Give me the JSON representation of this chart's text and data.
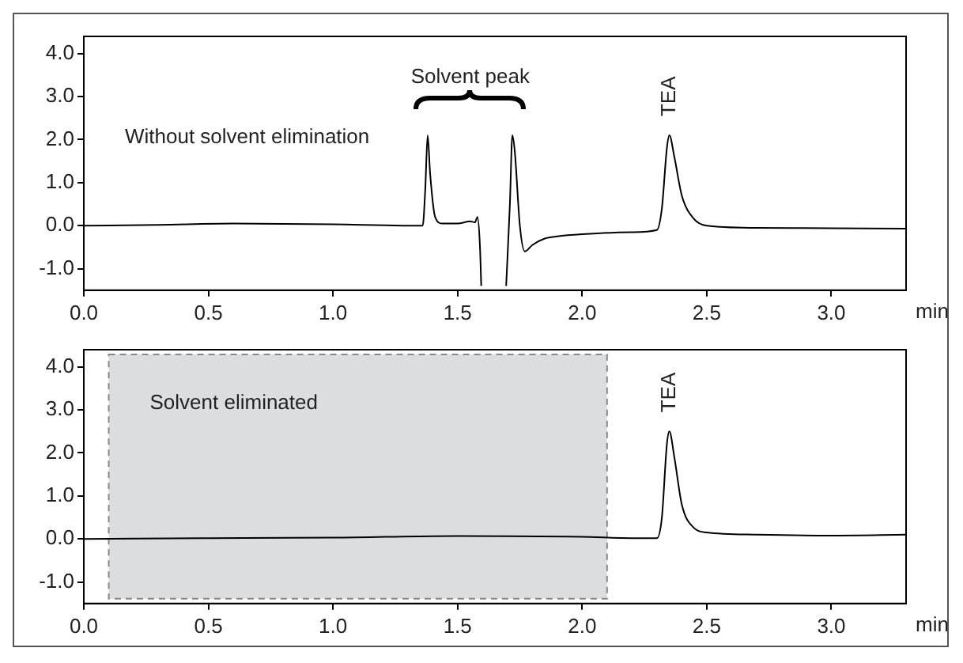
{
  "chart_data": [
    {
      "type": "line",
      "xlabel": "min",
      "xlim": [
        0,
        3.3
      ],
      "ylim": [
        -1.5,
        4.4
      ],
      "grid": false,
      "legend": false,
      "marker": "none",
      "line_style": "solid",
      "xticks": [
        {
          "value": 0,
          "label": "0.0"
        },
        {
          "value": 0.5,
          "label": "0.5"
        },
        {
          "value": 1,
          "label": "1.0"
        },
        {
          "value": 1.5,
          "label": "1.5"
        },
        {
          "value": 2,
          "label": "2.0"
        },
        {
          "value": 2.5,
          "label": "2.5"
        },
        {
          "value": 3,
          "label": "3.0"
        }
      ],
      "yticks": [
        {
          "value": -1,
          "label": "-1.0"
        },
        {
          "value": 0,
          "label": "0.0"
        },
        {
          "value": 1,
          "label": "1.0"
        },
        {
          "value": 2,
          "label": "2.0"
        },
        {
          "value": 3,
          "label": "3.0"
        },
        {
          "value": 4,
          "label": "4.0"
        }
      ],
      "annotations": [
        "Without solvent elimination",
        "Solvent peak",
        "TEA"
      ],
      "series": [
        {
          "color": "#000000",
          "x": [
            0,
            0.3,
            0.6,
            1.0,
            1.3,
            1.36,
            1.37,
            1.38,
            1.39,
            1.41,
            1.44,
            1.5,
            1.55,
            1.57,
            1.58,
            1.59,
            1.595,
            1.65,
            1.695,
            1.71,
            1.72,
            1.73,
            1.75,
            1.77,
            1.8,
            1.85,
            1.9,
            2.0,
            2.2,
            2.3,
            2.32,
            2.34,
            2.35,
            2.37,
            2.4,
            2.45,
            2.5,
            2.7,
            3.0,
            3.3
          ],
          "values": [
            0,
            0.02,
            0.05,
            0.03,
            0.0,
            0.0,
            0.8,
            2.1,
            1.2,
            0.2,
            0.05,
            0.05,
            0.1,
            0.08,
            0.2,
            -0.5,
            -1.4,
            null,
            -1.4,
            0.5,
            2.1,
            1.7,
            0.0,
            -0.6,
            -0.45,
            -0.3,
            -0.25,
            -0.2,
            -0.15,
            -0.1,
            0.4,
            1.8,
            2.1,
            1.6,
            0.7,
            0.15,
            0.0,
            -0.05,
            -0.06,
            -0.07
          ]
        }
      ]
    },
    {
      "type": "line",
      "xlabel": "min",
      "xlim": [
        0,
        3.3
      ],
      "ylim": [
        -1.5,
        4.4
      ],
      "grid": false,
      "legend": false,
      "marker": "none",
      "line_style": "solid",
      "xticks": [
        {
          "value": 0,
          "label": "0.0"
        },
        {
          "value": 0.5,
          "label": "0.5"
        },
        {
          "value": 1,
          "label": "1.0"
        },
        {
          "value": 1.5,
          "label": "1.5"
        },
        {
          "value": 2,
          "label": "2.0"
        },
        {
          "value": 2.5,
          "label": "2.5"
        },
        {
          "value": 3,
          "label": "3.0"
        }
      ],
      "yticks": [
        {
          "value": -1,
          "label": "-1.0"
        },
        {
          "value": 0,
          "label": "0.0"
        },
        {
          "value": 1,
          "label": "1.0"
        },
        {
          "value": 2,
          "label": "2.0"
        },
        {
          "value": 3,
          "label": "3.0"
        },
        {
          "value": 4,
          "label": "4.0"
        }
      ],
      "bands": [
        {
          "axis": "x",
          "from": 0.1,
          "to": 2.1,
          "label": "Solvent eliminated",
          "color": "#dcdde0"
        }
      ],
      "annotations": [
        "TEA"
      ],
      "series": [
        {
          "color": "#000000",
          "x": [
            0,
            0.5,
            1.0,
            1.5,
            2.0,
            2.2,
            2.3,
            2.32,
            2.34,
            2.35,
            2.37,
            2.4,
            2.45,
            2.5,
            2.7,
            3.0,
            3.3
          ],
          "values": [
            0,
            0.02,
            0.03,
            0.07,
            0.05,
            0.02,
            0.02,
            0.5,
            2.2,
            2.5,
            1.9,
            0.8,
            0.25,
            0.15,
            0.1,
            0.08,
            0.1
          ]
        }
      ]
    }
  ]
}
